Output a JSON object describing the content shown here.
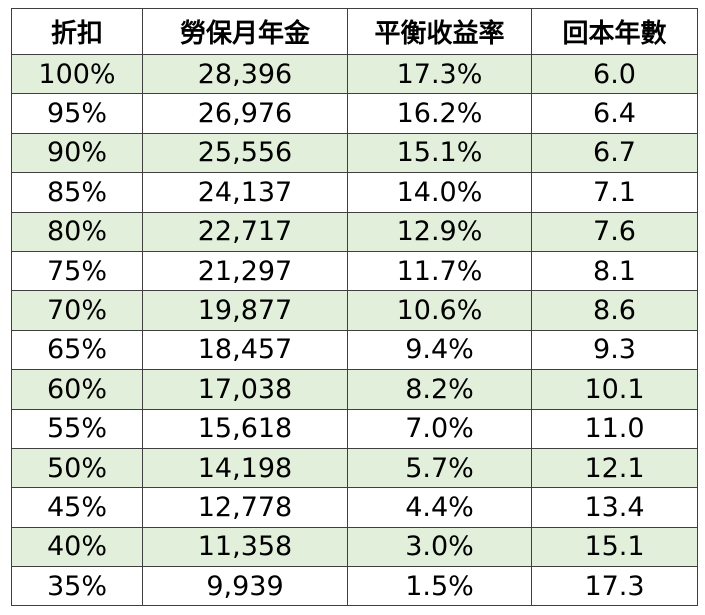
{
  "table": {
    "headers": [
      "折扣",
      "勞保月年金",
      "平衡收益率",
      "回本年數"
    ],
    "rows": [
      [
        "100%",
        "28,396",
        "17.3%",
        "6.0"
      ],
      [
        "95%",
        "26,976",
        "16.2%",
        "6.4"
      ],
      [
        "90%",
        "25,556",
        "15.1%",
        "6.7"
      ],
      [
        "85%",
        "24,137",
        "14.0%",
        "7.1"
      ],
      [
        "80%",
        "22,717",
        "12.9%",
        "7.6"
      ],
      [
        "75%",
        "21,297",
        "11.7%",
        "8.1"
      ],
      [
        "70%",
        "19,877",
        "10.6%",
        "8.6"
      ],
      [
        "65%",
        "18,457",
        "9.4%",
        "9.3"
      ],
      [
        "60%",
        "17,038",
        "8.2%",
        "10.1"
      ],
      [
        "55%",
        "15,618",
        "7.0%",
        "11.0"
      ],
      [
        "50%",
        "14,198",
        "5.7%",
        "12.1"
      ],
      [
        "45%",
        "12,778",
        "4.4%",
        "13.4"
      ],
      [
        "40%",
        "11,358",
        "3.0%",
        "15.1"
      ],
      [
        "35%",
        "9,939",
        "1.5%",
        "17.3"
      ]
    ],
    "colors": {
      "shade": "#e2efda",
      "plain": "#ffffff",
      "border": "#3f3f3f"
    }
  }
}
